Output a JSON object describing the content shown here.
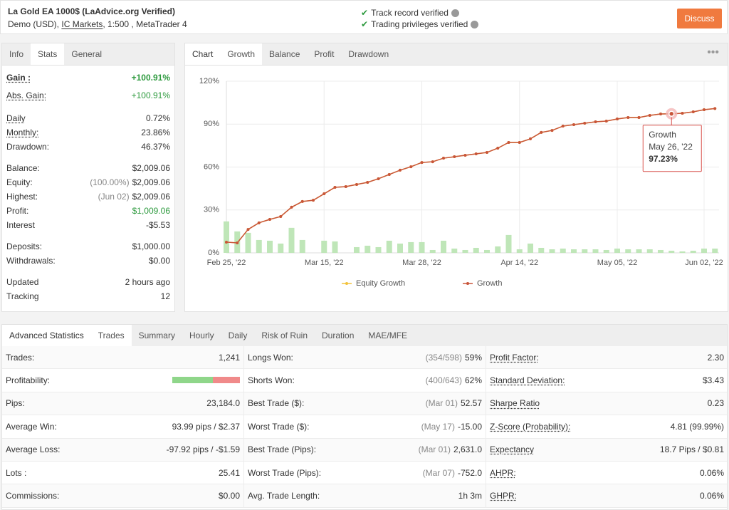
{
  "header": {
    "title": "La Gold EA 1000$ (LaAdvice.org Verified)",
    "account_type": "Demo (USD),",
    "broker": "IC Markets",
    "account_details": ", 1:500 , MetaTrader 4",
    "verifications": [
      "Track record verified",
      "Trading privileges verified"
    ],
    "button": "Discuss"
  },
  "info_panel": {
    "tabs": [
      "Info",
      "Stats",
      "General"
    ],
    "groups": [
      [
        {
          "label": "Gain :",
          "value": "+100.91%"
        },
        {
          "label": "Abs. Gain:",
          "value": "+100.91%"
        }
      ],
      [
        {
          "label": "Daily",
          "value": "0.72%"
        },
        {
          "label": "Monthly:",
          "value": "23.86%"
        },
        {
          "label": "Drawdown:",
          "value": "46.37%"
        }
      ],
      [
        {
          "label": "Balance:",
          "value": "$2,009.06"
        },
        {
          "label": "Equity:",
          "note": "(100.00%)",
          "value": "$2,009.06"
        },
        {
          "label": "Highest:",
          "note": "(Jun 02)",
          "value": "$2,009.06"
        },
        {
          "label": "Profit:",
          "value": "$1,009.06"
        },
        {
          "label": "Interest",
          "value": "-$5.53"
        }
      ],
      [
        {
          "label": "Deposits:",
          "value": "$1,000.00"
        },
        {
          "label": "Withdrawals:",
          "value": "$0.00"
        }
      ],
      [
        {
          "label": "Updated",
          "value": "2 hours ago"
        },
        {
          "label": "Tracking",
          "value": "12"
        }
      ]
    ]
  },
  "chart_panel": {
    "tabs": [
      "Chart",
      "Growth",
      "Balance",
      "Profit",
      "Drawdown"
    ]
  },
  "chart_data": {
    "type": "line",
    "categories": [
      "Feb 25, '22",
      null,
      null,
      null,
      null,
      null,
      null,
      null,
      null,
      "Mar 15, '22",
      null,
      null,
      null,
      null,
      null,
      null,
      null,
      null,
      "Mar 28, '22",
      null,
      null,
      null,
      null,
      null,
      null,
      null,
      null,
      "Apr 14, '22",
      null,
      null,
      null,
      null,
      null,
      null,
      null,
      null,
      "May 05, '22",
      null,
      null,
      null,
      null,
      null,
      null,
      null,
      "Jun 02, '22",
      null
    ],
    "series": [
      {
        "name": "Equity Growth",
        "color": "#f2c33c",
        "values": [
          7.5,
          7,
          16.4,
          21,
          23.4,
          25.4,
          31.9,
          35.9,
          36.8,
          41.3,
          45.8,
          46.3,
          47.8,
          49.3,
          51.8,
          54.8,
          57.8,
          60.2,
          63.2,
          63.7,
          66.2,
          67.2,
          68.2,
          69.2,
          70.2,
          73.2,
          77.2,
          77.2,
          79.7,
          84.2,
          85.6,
          88.6,
          89.6,
          90.6,
          91.6,
          92.1,
          93.6,
          94.6,
          94.6,
          96.1,
          97.1,
          97.23,
          97.6,
          98.6,
          100.1,
          100.91
        ]
      },
      {
        "name": "Growth",
        "color": "#c8553a",
        "values": [
          7.5,
          7,
          16.4,
          21,
          23.4,
          25.4,
          31.9,
          35.9,
          36.8,
          41.3,
          45.8,
          46.3,
          47.8,
          49.3,
          51.8,
          54.8,
          57.8,
          60.2,
          63.2,
          63.7,
          66.2,
          67.2,
          68.2,
          69.2,
          70.2,
          73.2,
          77.2,
          77.2,
          79.7,
          84.2,
          85.6,
          88.6,
          89.6,
          90.6,
          91.6,
          92.1,
          93.6,
          94.6,
          94.6,
          96.1,
          97.1,
          97.23,
          97.6,
          98.6,
          100.1,
          100.91
        ]
      },
      {
        "type": "bar",
        "color": "#bfe6b8",
        "values": [
          22,
          15,
          14,
          9,
          8.5,
          6.5,
          17.5,
          9,
          0,
          8.5,
          8,
          0,
          4,
          5,
          4,
          8.5,
          6.5,
          7.5,
          7.5,
          2,
          8.5,
          3,
          2,
          3.5,
          2,
          4.5,
          12.5,
          2.5,
          6.5,
          3.5,
          2.5,
          3,
          2.5,
          2.5,
          2.5,
          2,
          3,
          2.5,
          2.5,
          2.5,
          2,
          1.5,
          1,
          1.5,
          3,
          3
        ]
      }
    ],
    "ylim": [
      0,
      120
    ],
    "yticks": [
      {
        "value": 0,
        "label": "0%"
      },
      {
        "value": 30,
        "label": "30%"
      },
      {
        "value": 60,
        "label": "60%"
      },
      {
        "value": 90,
        "label": "90%"
      },
      {
        "value": 120,
        "label": "120%"
      }
    ],
    "grid": true,
    "legend": "bottom",
    "annotation": {
      "title": "Growth",
      "date": "May 26, '22",
      "value": 97.23,
      "value_label": "97.23%"
    }
  },
  "advanced_statistics": {
    "tabs": [
      "Advanced Statistics",
      "Trades",
      "Summary",
      "Hourly",
      "Daily",
      "Risk of Ruin",
      "Duration",
      "MAE/MFE"
    ],
    "columns": [
      [
        {
          "label": "Trades:",
          "value": "1,241"
        },
        {
          "label": "Profitability:"
        },
        {
          "label": "Pips:",
          "value": "23,184.0"
        },
        {
          "label": "Average Win:",
          "value": "93.99 pips / $2.37"
        },
        {
          "label": "Average Loss:",
          "value": "-97.92 pips / -$1.59"
        },
        {
          "label": "Lots :",
          "value": "25.41"
        },
        {
          "label": "Commissions:",
          "value": "$0.00"
        }
      ],
      [
        {
          "label": "Longs Won:",
          "note": "(354/598)",
          "value": "59%"
        },
        {
          "label": "Shorts Won:",
          "note": "(400/643)",
          "value": "62%"
        },
        {
          "label": "Best Trade ($):",
          "note": "(Mar 01)",
          "value": "52.57"
        },
        {
          "label": "Worst Trade ($):",
          "note": "(May 17)",
          "value": "-15.00"
        },
        {
          "label": "Best Trade (Pips):",
          "note": "(Mar 01)",
          "value": "2,631.0"
        },
        {
          "label": "Worst Trade (Pips):",
          "note": "(Mar 07)",
          "value": "-752.0"
        },
        {
          "label": "Avg. Trade Length:",
          "value": "1h 3m"
        }
      ],
      [
        {
          "label": "Profit Factor:",
          "value": "2.30"
        },
        {
          "label": "Standard Deviation:",
          "value": "$3.43"
        },
        {
          "label": "Sharpe Ratio",
          "value": "0.23"
        },
        {
          "label": "Z-Score (Probability):",
          "value": "4.81 (99.99%)"
        },
        {
          "label": "Expectancy",
          "value": "18.7 Pips / $0.81"
        },
        {
          "label": "AHPR:",
          "value": "0.06%"
        },
        {
          "label": "GHPR:",
          "value": "0.06%"
        }
      ]
    ]
  }
}
